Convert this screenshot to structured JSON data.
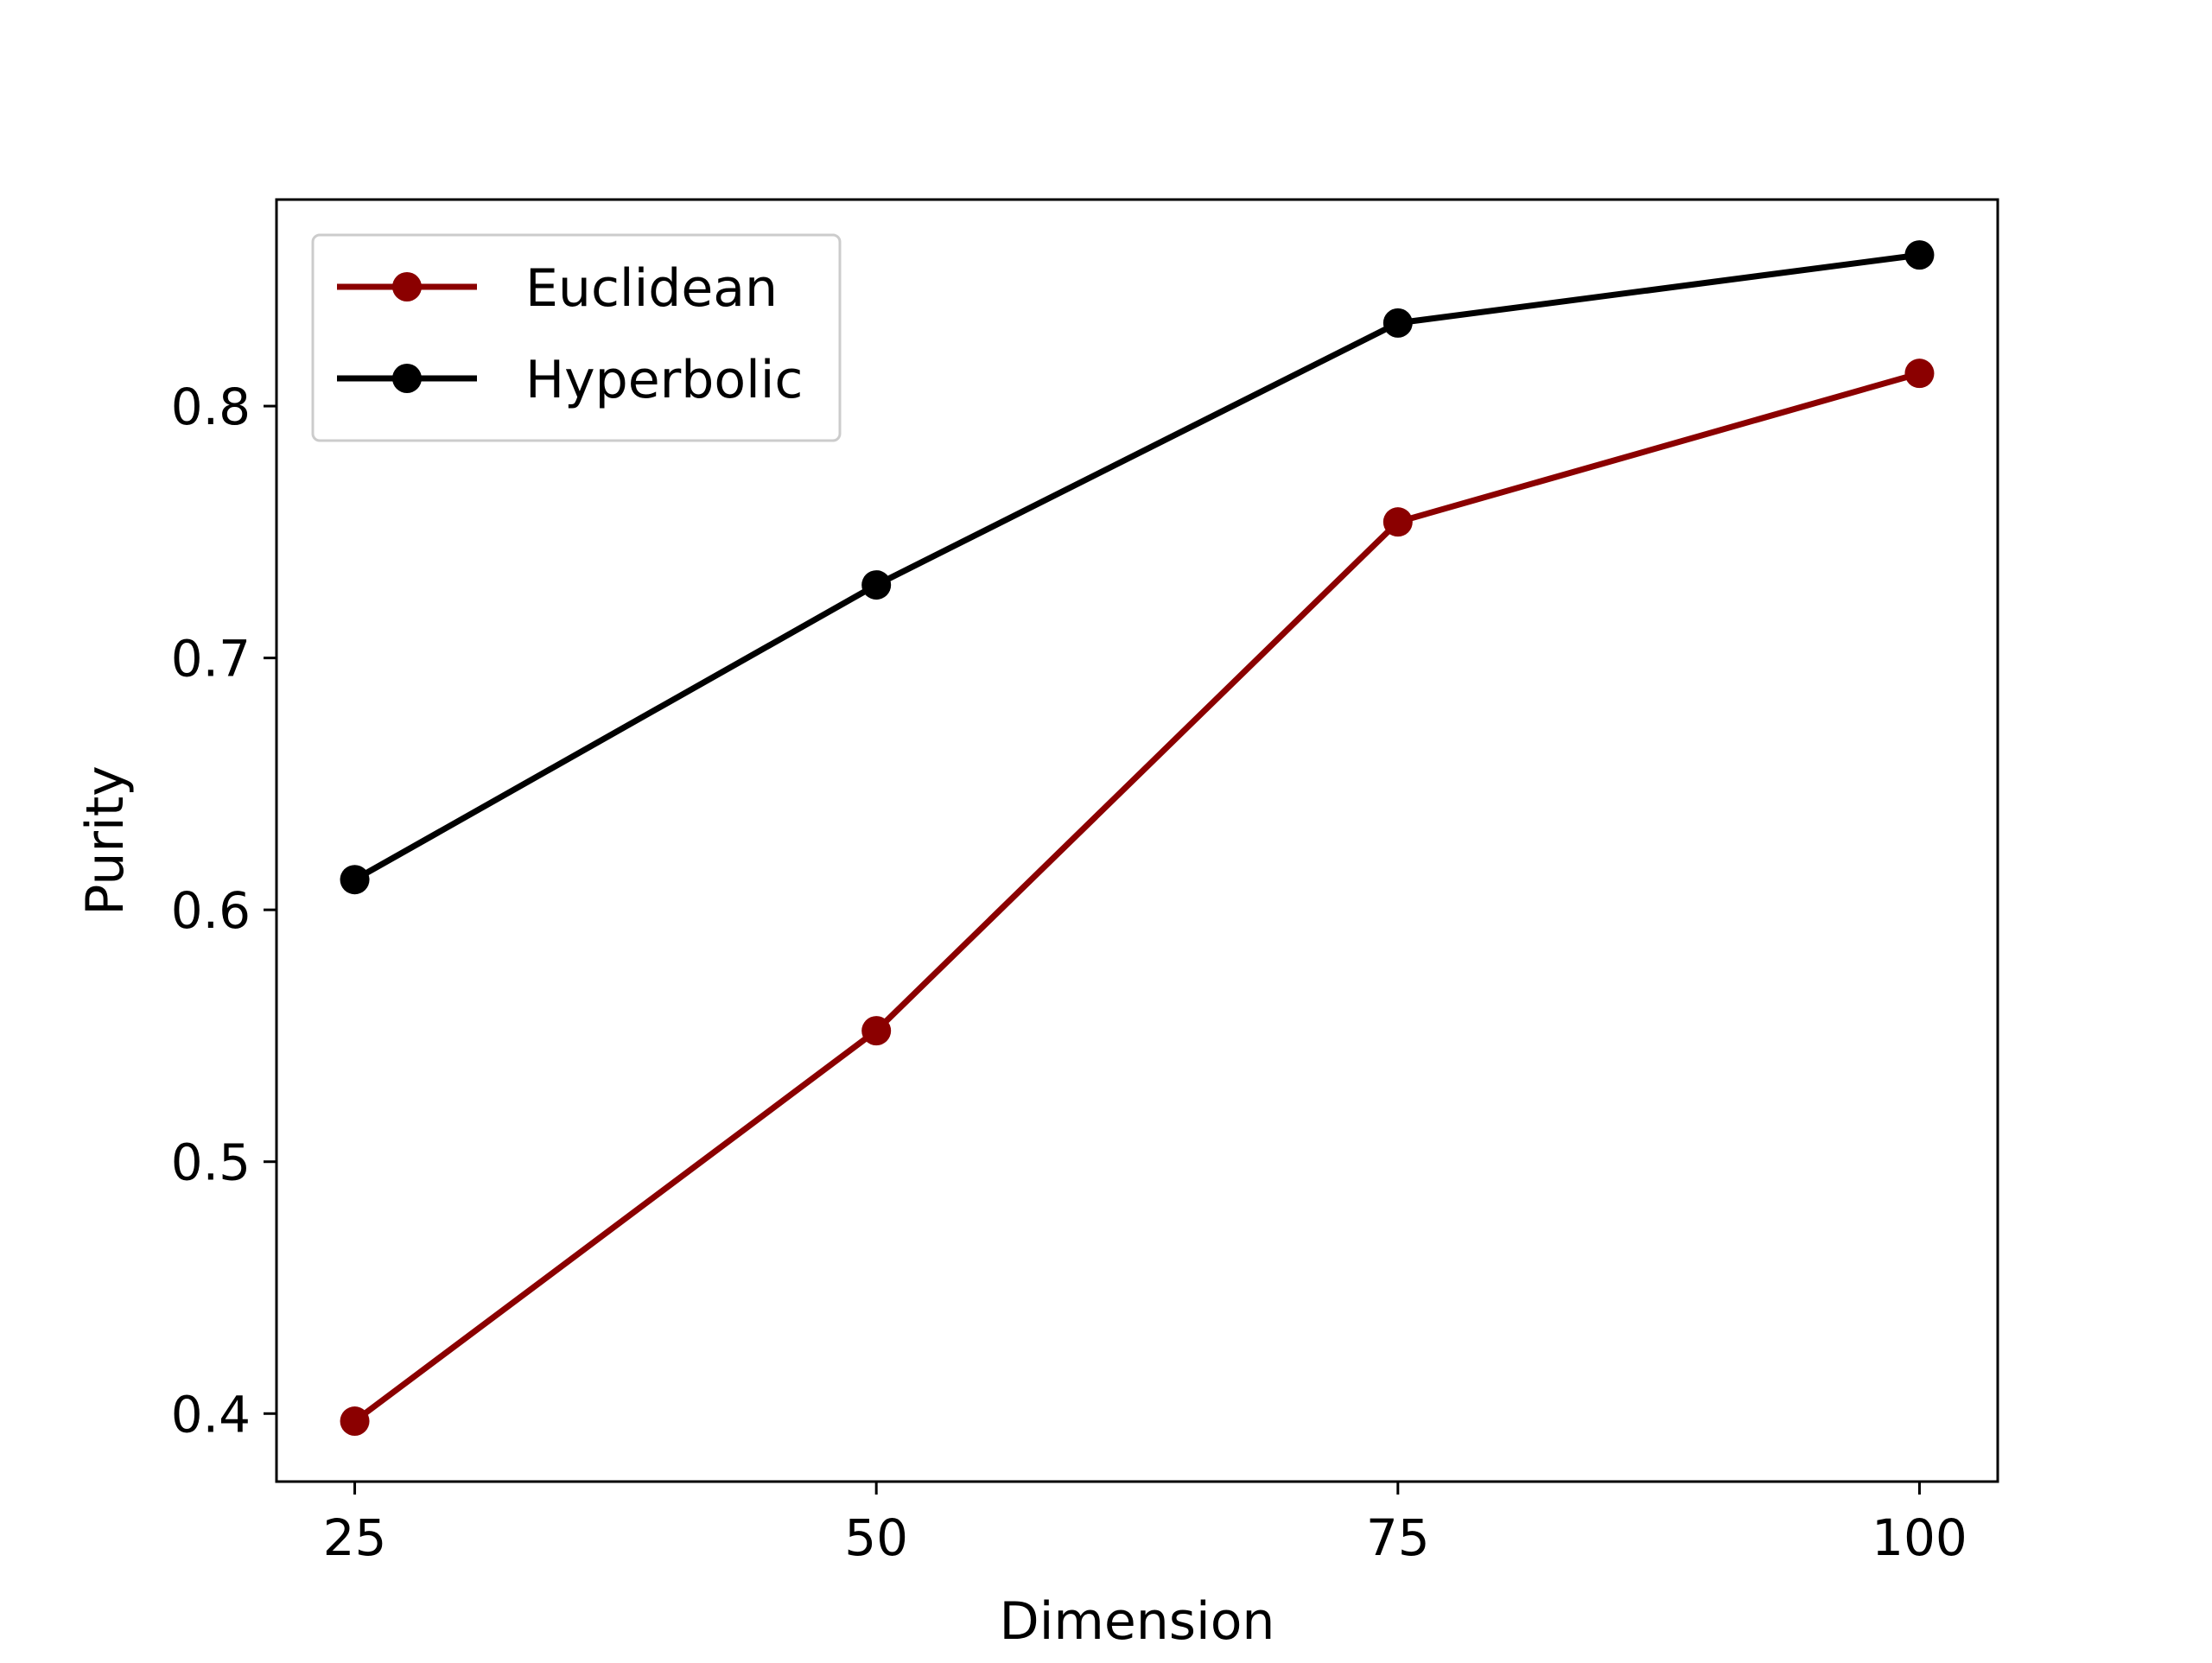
{
  "chart_data": {
    "type": "line",
    "title": "",
    "xlabel": "Dimension",
    "ylabel": "Purity",
    "x": [
      25,
      50,
      75,
      100
    ],
    "xticks": [
      "25",
      "50",
      "75",
      "100"
    ],
    "yticks": [
      "0.4",
      "0.5",
      "0.6",
      "0.7",
      "0.8"
    ],
    "ytick_values": [
      0.4,
      0.5,
      0.6,
      0.7,
      0.8
    ],
    "xlim": [
      21.25,
      103.75
    ],
    "ylim": [
      0.373,
      0.882
    ],
    "grid": false,
    "legend_position": "top-left",
    "series": [
      {
        "name": "Euclidean",
        "color": "#8b0000",
        "marker": "circle",
        "values": [
          0.397,
          0.552,
          0.754,
          0.813
        ]
      },
      {
        "name": "Hyperbolic",
        "color": "#000000",
        "marker": "circle",
        "values": [
          0.612,
          0.729,
          0.833,
          0.86
        ]
      }
    ]
  }
}
